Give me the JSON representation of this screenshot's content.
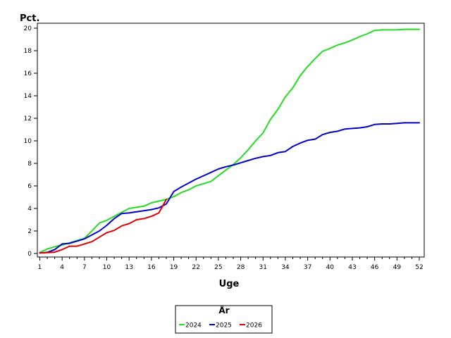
{
  "chart_data": {
    "type": "line",
    "title": "",
    "xlabel": "Uge",
    "ylabel": "Pct.",
    "xlim": [
      1,
      52
    ],
    "ylim": [
      0,
      20
    ],
    "xticks": [
      1,
      4,
      7,
      10,
      13,
      16,
      19,
      22,
      25,
      28,
      31,
      34,
      37,
      40,
      43,
      46,
      49,
      52
    ],
    "yticks": [
      0,
      2,
      4,
      6,
      8,
      10,
      12,
      14,
      16,
      18,
      20
    ],
    "grid": false,
    "legend": {
      "title": "År",
      "position": "bottom-center"
    },
    "series": [
      {
        "name": "2024",
        "color": "#22dd22",
        "x": [
          1,
          2,
          3,
          4,
          5,
          6,
          7,
          8,
          9,
          10,
          11,
          12,
          13,
          14,
          15,
          16,
          17,
          18,
          19,
          20,
          21,
          22,
          23,
          24,
          25,
          26,
          27,
          28,
          29,
          30,
          31,
          32,
          33,
          34,
          35,
          36,
          37,
          38,
          39,
          40,
          41,
          42,
          43,
          44,
          45,
          46,
          47,
          48,
          49,
          50,
          51,
          52
        ],
        "values": [
          0.1,
          0.4,
          0.6,
          0.75,
          0.95,
          1.15,
          1.35,
          2.0,
          2.7,
          2.95,
          3.3,
          3.65,
          4.0,
          4.1,
          4.2,
          4.5,
          4.65,
          4.8,
          5.05,
          5.4,
          5.65,
          6.0,
          6.2,
          6.4,
          6.9,
          7.4,
          7.9,
          8.5,
          9.2,
          10.0,
          10.7,
          11.9,
          12.8,
          13.9,
          14.7,
          15.8,
          16.6,
          17.3,
          17.95,
          18.2,
          18.5,
          18.7,
          18.95,
          19.25,
          19.5,
          19.8,
          19.85,
          19.85,
          19.85,
          19.9,
          19.9,
          19.9
        ]
      },
      {
        "name": "2025",
        "color": "#0000cc",
        "x": [
          1,
          2,
          3,
          4,
          5,
          6,
          7,
          8,
          9,
          10,
          11,
          12,
          13,
          14,
          15,
          16,
          17,
          18,
          19,
          20,
          21,
          22,
          23,
          24,
          25,
          26,
          27,
          28,
          29,
          30,
          31,
          32,
          33,
          34,
          35,
          36,
          37,
          38,
          39,
          40,
          41,
          42,
          43,
          44,
          45,
          46,
          47,
          48,
          49,
          50,
          51,
          52
        ],
        "values": [
          0.05,
          0.1,
          0.35,
          0.85,
          0.9,
          1.1,
          1.3,
          1.65,
          2.0,
          2.5,
          3.1,
          3.55,
          3.6,
          3.7,
          3.8,
          3.9,
          4.05,
          4.4,
          5.5,
          5.9,
          6.25,
          6.6,
          6.9,
          7.2,
          7.5,
          7.7,
          7.85,
          8.05,
          8.25,
          8.45,
          8.6,
          8.7,
          8.95,
          9.05,
          9.5,
          9.8,
          10.05,
          10.15,
          10.55,
          10.75,
          10.85,
          11.05,
          11.1,
          11.15,
          11.25,
          11.45,
          11.5,
          11.5,
          11.55,
          11.6,
          11.6,
          11.6
        ]
      },
      {
        "name": "2026",
        "color": "#dd0000",
        "x": [
          1,
          2,
          3,
          4,
          5,
          6,
          7,
          8,
          9,
          10,
          11,
          12,
          13,
          14,
          15,
          16,
          17,
          18
        ],
        "values": [
          0.05,
          0.08,
          0.12,
          0.35,
          0.65,
          0.65,
          0.85,
          1.05,
          1.45,
          1.85,
          2.05,
          2.45,
          2.65,
          3.0,
          3.1,
          3.3,
          3.6,
          4.8
        ]
      }
    ]
  }
}
